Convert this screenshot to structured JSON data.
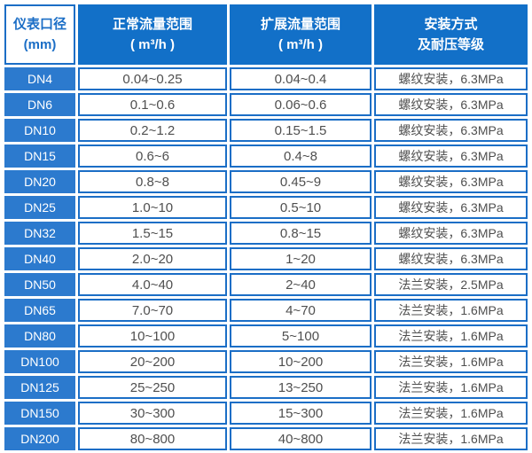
{
  "colors": {
    "header_bg": "#1270c8",
    "label_bg": "#2c7ace",
    "border": "#1b6ec6",
    "data_text": "#4f4f4f",
    "header_text": "#ffffff",
    "corner_bg": "#ffffff",
    "corner_text": "#1b6ec6"
  },
  "chart_data": {
    "type": "table",
    "columns": [
      {
        "title": "仪表口径",
        "subtitle": "(mm)"
      },
      {
        "title": "正常流量范围",
        "subtitle": "( m³/h )"
      },
      {
        "title": "扩展流量范围",
        "subtitle": "( m³/h )"
      },
      {
        "title": "安装方式",
        "subtitle": "及耐压等级"
      }
    ],
    "rows": [
      [
        "DN4",
        "0.04~0.25",
        "0.04~0.4",
        "螺纹安装，6.3MPa"
      ],
      [
        "DN6",
        "0.1~0.6",
        "0.06~0.6",
        "螺纹安装，6.3MPa"
      ],
      [
        "DN10",
        "0.2~1.2",
        "0.15~1.5",
        "螺纹安装，6.3MPa"
      ],
      [
        "DN15",
        "0.6~6",
        "0.4~8",
        "螺纹安装，6.3MPa"
      ],
      [
        "DN20",
        "0.8~8",
        "0.45~9",
        "螺纹安装，6.3MPa"
      ],
      [
        "DN25",
        "1.0~10",
        "0.5~10",
        "螺纹安装，6.3MPa"
      ],
      [
        "DN32",
        "1.5~15",
        "0.8~15",
        "螺纹安装，6.3MPa"
      ],
      [
        "DN40",
        "2.0~20",
        "1~20",
        "螺纹安装，6.3MPa"
      ],
      [
        "DN50",
        "4.0~40",
        "2~40",
        "法兰安装，2.5MPa"
      ],
      [
        "DN65",
        "7.0~70",
        "4~70",
        "法兰安装，1.6MPa"
      ],
      [
        "DN80",
        "10~100",
        "5~100",
        "法兰安装，1.6MPa"
      ],
      [
        "DN100",
        "20~200",
        "10~200",
        "法兰安装，1.6MPa"
      ],
      [
        "DN125",
        "25~250",
        "13~250",
        "法兰安装，1.6MPa"
      ],
      [
        "DN150",
        "30~300",
        "15~300",
        "法兰安装，1.6MPa"
      ],
      [
        "DN200",
        "80~800",
        "40~800",
        "法兰安装，1.6MPa"
      ]
    ]
  }
}
